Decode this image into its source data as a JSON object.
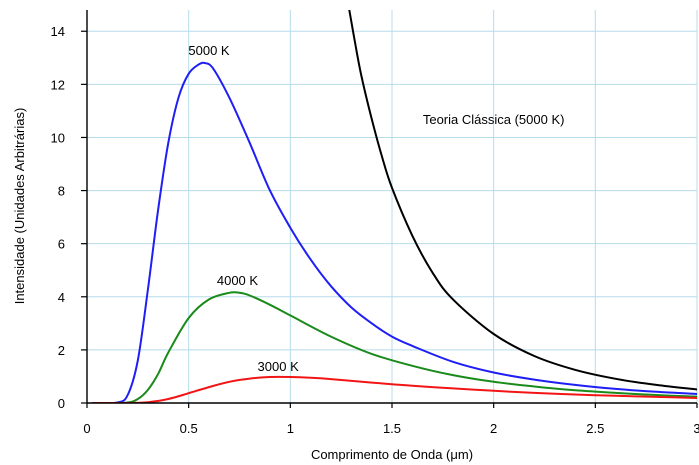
{
  "chart_data": {
    "type": "line",
    "title": "",
    "xlabel": "Comprimento de Onda (μm)",
    "ylabel": "Intensidade (Unidades Arbitrárias)",
    "xlim": [
      0,
      3
    ],
    "ylim": [
      0,
      14.8
    ],
    "x_ticks": [
      "0",
      "0.5",
      "1",
      "1.5",
      "2",
      "2.5",
      "3"
    ],
    "x_tick_values": [
      0,
      0.5,
      1,
      1.5,
      2,
      2.5,
      3
    ],
    "y_ticks": [
      "0",
      "2",
      "4",
      "6",
      "8",
      "10",
      "12",
      "14"
    ],
    "y_tick_values": [
      0,
      2,
      4,
      6,
      8,
      10,
      12,
      14
    ],
    "grid": true,
    "series": [
      {
        "name": "5000 K",
        "color": "#1f1ff5",
        "x": [
          0.05,
          0.15,
          0.2,
          0.25,
          0.3,
          0.35,
          0.4,
          0.45,
          0.5,
          0.55,
          0.58,
          0.62,
          0.7,
          0.8,
          0.9,
          1.0,
          1.1,
          1.2,
          1.3,
          1.4,
          1.5,
          1.6,
          1.8,
          2.0,
          2.2,
          2.4,
          2.6,
          2.8,
          3.0
        ],
        "values": [
          0,
          0.02,
          0.3,
          1.6,
          4.3,
          7.3,
          9.8,
          11.5,
          12.4,
          12.75,
          12.8,
          12.6,
          11.5,
          9.8,
          8.0,
          6.6,
          5.4,
          4.4,
          3.6,
          3.0,
          2.5,
          2.15,
          1.55,
          1.15,
          0.88,
          0.68,
          0.53,
          0.42,
          0.34
        ]
      },
      {
        "name": "4000 K",
        "color": "#1a8a1a",
        "x": [
          0.1,
          0.2,
          0.25,
          0.3,
          0.35,
          0.4,
          0.5,
          0.6,
          0.7,
          0.75,
          0.8,
          0.9,
          1.0,
          1.2,
          1.4,
          1.6,
          1.8,
          2.0,
          2.2,
          2.4,
          2.6,
          2.8,
          3.0
        ],
        "values": [
          0,
          0.02,
          0.15,
          0.5,
          1.1,
          1.9,
          3.2,
          3.9,
          4.15,
          4.15,
          4.05,
          3.7,
          3.3,
          2.5,
          1.85,
          1.4,
          1.05,
          0.8,
          0.62,
          0.48,
          0.38,
          0.3,
          0.24
        ]
      },
      {
        "name": "3000 K",
        "color": "#f21515",
        "x": [
          0.2,
          0.3,
          0.4,
          0.5,
          0.6,
          0.7,
          0.8,
          0.9,
          1.0,
          1.1,
          1.2,
          1.4,
          1.6,
          1.8,
          2.0,
          2.2,
          2.4,
          2.6,
          2.8,
          3.0
        ],
        "values": [
          0,
          0.03,
          0.15,
          0.37,
          0.6,
          0.8,
          0.92,
          0.98,
          0.98,
          0.95,
          0.9,
          0.77,
          0.65,
          0.55,
          0.46,
          0.38,
          0.32,
          0.27,
          0.23,
          0.19
        ]
      },
      {
        "name": "Teoria Clássica (5000 K)",
        "color": "#000000",
        "x": [
          1.29,
          1.32,
          1.35,
          1.4,
          1.45,
          1.5,
          1.6,
          1.7,
          1.8,
          2.0,
          2.2,
          2.4,
          2.6,
          2.8,
          3.0
        ],
        "values": [
          14.8,
          13.5,
          12.3,
          10.7,
          9.3,
          8.1,
          6.3,
          4.9,
          3.9,
          2.6,
          1.77,
          1.25,
          0.91,
          0.68,
          0.51
        ]
      }
    ],
    "annotations": [
      {
        "text": "5000 K",
        "x": 0.6,
        "y": 13.1
      },
      {
        "text": "4000 K",
        "x": 0.74,
        "y": 4.45
      },
      {
        "text": "3000 K",
        "x": 0.94,
        "y": 1.2
      },
      {
        "text": "Teoria Clássica (5000 K)",
        "x": 2.0,
        "y": 10.5
      }
    ]
  }
}
